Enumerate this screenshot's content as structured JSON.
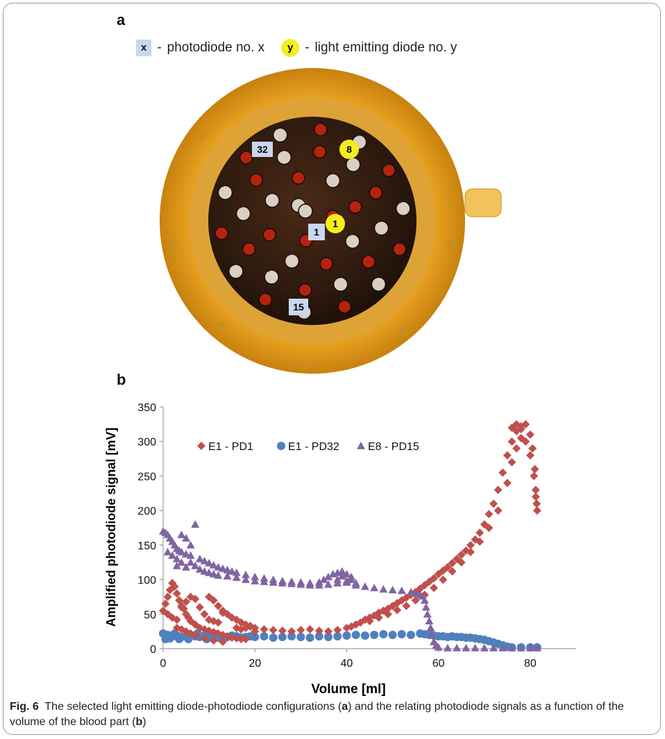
{
  "panel_a": {
    "letter": "a",
    "legend": {
      "pd_symbol": "x",
      "pd_text": "photodiode no. x",
      "led_symbol": "y",
      "led_text": "light emitting diode no. y",
      "dash": "-"
    },
    "markers": [
      {
        "kind": "photodiode",
        "label": "32"
      },
      {
        "kind": "led",
        "label": "8"
      },
      {
        "kind": "photodiode",
        "label": "1"
      },
      {
        "kind": "led",
        "label": "1"
      },
      {
        "kind": "photodiode",
        "label": "15"
      }
    ]
  },
  "panel_b": {
    "letter": "b"
  },
  "caption": {
    "fig_label": "Fig. 6",
    "part1": "The selected light emitting diode-photodiode configurations (",
    "a": "a",
    "part2": ") and the relating photodiode signals as a function of the volume of the blood part (",
    "b": "b",
    "part3": ")"
  },
  "chart_data": {
    "type": "scatter",
    "xlabel": "Volume [ml]",
    "ylabel": "Amplified photodiode signal [mV]",
    "xlim": [
      0,
      90
    ],
    "ylim": [
      0,
      350
    ],
    "xticks": [
      0,
      20,
      40,
      60,
      80
    ],
    "yticks": [
      0,
      50,
      100,
      150,
      200,
      250,
      300,
      350
    ],
    "grid": false,
    "legend_position": "top",
    "series": [
      {
        "name": "E1 - PD1",
        "marker": "diamond",
        "color": "#c0504d",
        "points": [
          [
            0,
            55
          ],
          [
            0.5,
            65
          ],
          [
            1,
            75
          ],
          [
            1.5,
            85
          ],
          [
            2,
            95
          ],
          [
            2.5,
            90
          ],
          [
            3,
            80
          ],
          [
            3.5,
            70
          ],
          [
            4,
            62
          ],
          [
            4.5,
            58
          ],
          [
            5,
            50
          ],
          [
            5.5,
            45
          ],
          [
            6,
            40
          ],
          [
            7,
            35
          ],
          [
            8,
            30
          ],
          [
            9,
            28
          ],
          [
            10,
            26
          ],
          [
            11,
            24
          ],
          [
            12,
            22
          ],
          [
            13,
            20
          ],
          [
            14,
            18
          ],
          [
            15,
            16
          ],
          [
            16,
            15
          ],
          [
            17,
            14
          ],
          [
            18,
            14
          ],
          [
            1,
            50
          ],
          [
            2,
            45
          ],
          [
            3,
            42
          ],
          [
            4,
            60
          ],
          [
            5,
            68
          ],
          [
            6,
            75
          ],
          [
            7,
            72
          ],
          [
            8,
            60
          ],
          [
            9,
            50
          ],
          [
            10,
            42
          ],
          [
            11,
            40
          ],
          [
            12,
            38
          ],
          [
            13,
            55
          ],
          [
            14,
            50
          ],
          [
            15,
            45
          ],
          [
            16,
            42
          ],
          [
            17,
            38
          ],
          [
            18,
            35
          ],
          [
            19,
            32
          ],
          [
            20,
            30
          ],
          [
            3,
            30
          ],
          [
            4,
            28
          ],
          [
            5,
            25
          ],
          [
            6,
            22
          ],
          [
            7,
            20
          ],
          [
            9,
            15
          ],
          [
            11,
            12
          ],
          [
            13,
            10
          ],
          [
            10,
            75
          ],
          [
            11,
            70
          ],
          [
            12,
            62
          ],
          [
            13,
            52
          ],
          [
            16,
            30
          ],
          [
            17,
            28
          ],
          [
            18,
            30
          ],
          [
            19,
            33
          ],
          [
            20,
            25
          ],
          [
            22,
            28
          ],
          [
            24,
            27
          ],
          [
            26,
            26
          ],
          [
            28,
            25
          ],
          [
            30,
            27
          ],
          [
            32,
            28
          ],
          [
            34,
            26
          ],
          [
            36,
            25
          ],
          [
            38,
            27
          ],
          [
            40,
            30
          ],
          [
            41,
            32
          ],
          [
            42,
            35
          ],
          [
            43,
            38
          ],
          [
            44,
            42
          ],
          [
            45,
            45
          ],
          [
            46,
            48
          ],
          [
            47,
            52
          ],
          [
            48,
            55
          ],
          [
            49,
            58
          ],
          [
            50,
            62
          ],
          [
            51,
            66
          ],
          [
            52,
            70
          ],
          [
            53,
            74
          ],
          [
            54,
            78
          ],
          [
            55,
            82
          ],
          [
            56,
            87
          ],
          [
            57,
            92
          ],
          [
            58,
            97
          ],
          [
            59,
            102
          ],
          [
            60,
            108
          ],
          [
            61,
            113
          ],
          [
            62,
            118
          ],
          [
            63,
            124
          ],
          [
            64,
            130
          ],
          [
            65,
            136
          ],
          [
            66,
            142
          ],
          [
            67,
            150
          ],
          [
            68,
            158
          ],
          [
            69,
            168
          ],
          [
            70,
            180
          ],
          [
            71,
            195
          ],
          [
            72,
            210
          ],
          [
            73,
            230
          ],
          [
            74,
            255
          ],
          [
            75,
            280
          ],
          [
            76,
            300
          ],
          [
            77,
            315
          ],
          [
            78,
            322
          ],
          [
            79,
            325
          ],
          [
            80,
            310
          ],
          [
            80.5,
            290
          ],
          [
            81,
            260
          ],
          [
            81.2,
            230
          ],
          [
            81.4,
            210
          ],
          [
            81.5,
            200
          ],
          [
            45,
            40
          ],
          [
            47,
            45
          ],
          [
            49,
            50
          ],
          [
            51,
            56
          ],
          [
            53,
            62
          ],
          [
            55,
            70
          ],
          [
            57,
            78
          ],
          [
            59,
            88
          ],
          [
            61,
            100
          ],
          [
            63,
            112
          ],
          [
            65,
            125
          ],
          [
            67,
            140
          ],
          [
            69,
            155
          ],
          [
            71,
            175
          ],
          [
            73,
            200
          ],
          [
            75,
            240
          ],
          [
            76,
            270
          ],
          [
            77,
            290
          ],
          [
            78,
            305
          ],
          [
            79,
            300
          ],
          [
            80,
            280
          ],
          [
            80.8,
            250
          ],
          [
            81.2,
            220
          ],
          [
            76,
            320
          ],
          [
            77,
            325
          ],
          [
            78,
            318
          ]
        ]
      },
      {
        "name": "E1 - PD32",
        "marker": "circle",
        "color": "#4f81bd",
        "points": [
          [
            0,
            22
          ],
          [
            1,
            20
          ],
          [
            2,
            18
          ],
          [
            3,
            19
          ],
          [
            4,
            17
          ],
          [
            5,
            18
          ],
          [
            6,
            20
          ],
          [
            7,
            18
          ],
          [
            8,
            17
          ],
          [
            9,
            19
          ],
          [
            10,
            18
          ],
          [
            11,
            17
          ],
          [
            12,
            16
          ],
          [
            13,
            18
          ],
          [
            14,
            17
          ],
          [
            15,
            19
          ],
          [
            16,
            18
          ],
          [
            17,
            16
          ],
          [
            18,
            17
          ],
          [
            19,
            18
          ],
          [
            20,
            17
          ],
          [
            22,
            18
          ],
          [
            24,
            16
          ],
          [
            26,
            17
          ],
          [
            28,
            18
          ],
          [
            30,
            17
          ],
          [
            32,
            16
          ],
          [
            34,
            18
          ],
          [
            36,
            17
          ],
          [
            38,
            18
          ],
          [
            40,
            19
          ],
          [
            42,
            20
          ],
          [
            44,
            19
          ],
          [
            46,
            20
          ],
          [
            48,
            21
          ],
          [
            50,
            20
          ],
          [
            52,
            21
          ],
          [
            54,
            20
          ],
          [
            56,
            22
          ],
          [
            57,
            21
          ],
          [
            58,
            20
          ],
          [
            59,
            19
          ],
          [
            60,
            18
          ],
          [
            61,
            18
          ],
          [
            62,
            17
          ],
          [
            63,
            18
          ],
          [
            64,
            17
          ],
          [
            65,
            17
          ],
          [
            66,
            16
          ],
          [
            67,
            16
          ],
          [
            68,
            15
          ],
          [
            69,
            14
          ],
          [
            70,
            13
          ],
          [
            71,
            11
          ],
          [
            72,
            9
          ],
          [
            73,
            7
          ],
          [
            74,
            5
          ],
          [
            75,
            3
          ],
          [
            76,
            2
          ],
          [
            78,
            2
          ],
          [
            80,
            2
          ],
          [
            81.5,
            2
          ],
          [
            0.5,
            14
          ],
          [
            1.5,
            15
          ],
          [
            2.5,
            22
          ],
          [
            3.5,
            14
          ],
          [
            5.5,
            14
          ],
          [
            7.5,
            22
          ],
          [
            9.5,
            14
          ],
          [
            11.5,
            21
          ]
        ]
      },
      {
        "name": "E8 - PD15",
        "marker": "triangle",
        "color": "#8064a2",
        "points": [
          [
            0,
            170
          ],
          [
            0.5,
            168
          ],
          [
            1,
            165
          ],
          [
            1.5,
            160
          ],
          [
            2,
            155
          ],
          [
            2.5,
            150
          ],
          [
            3,
            145
          ],
          [
            3.5,
            142
          ],
          [
            4,
            140
          ],
          [
            5,
            137
          ],
          [
            6,
            135
          ],
          [
            7,
            180
          ],
          [
            8,
            130
          ],
          [
            9,
            127
          ],
          [
            10,
            124
          ],
          [
            11,
            121
          ],
          [
            12,
            118
          ],
          [
            13,
            116
          ],
          [
            14,
            114
          ],
          [
            15,
            112
          ],
          [
            16,
            110
          ],
          [
            18,
            107
          ],
          [
            20,
            104
          ],
          [
            22,
            102
          ],
          [
            24,
            100
          ],
          [
            26,
            98
          ],
          [
            28,
            97
          ],
          [
            30,
            96
          ],
          [
            32,
            95
          ],
          [
            34,
            96
          ],
          [
            35,
            100
          ],
          [
            36,
            104
          ],
          [
            37,
            108
          ],
          [
            38,
            110
          ],
          [
            39,
            112
          ],
          [
            40,
            108
          ],
          [
            41,
            100
          ],
          [
            42,
            92
          ],
          [
            44,
            90
          ],
          [
            46,
            88
          ],
          [
            48,
            86
          ],
          [
            50,
            85
          ],
          [
            52,
            84
          ],
          [
            54,
            82
          ],
          [
            55,
            80
          ],
          [
            56,
            78
          ],
          [
            56.5,
            76
          ],
          [
            57,
            70
          ],
          [
            57.3,
            60
          ],
          [
            57.6,
            50
          ],
          [
            58,
            40
          ],
          [
            58.3,
            30
          ],
          [
            58.6,
            20
          ],
          [
            59,
            10
          ],
          [
            59.5,
            5
          ],
          [
            60,
            2
          ],
          [
            62,
            1
          ],
          [
            64,
            1
          ],
          [
            66,
            1
          ],
          [
            68,
            1
          ],
          [
            70,
            1
          ],
          [
            72,
            1
          ],
          [
            74,
            1
          ],
          [
            76,
            1
          ],
          [
            78,
            1
          ],
          [
            80,
            1
          ],
          [
            81.5,
            1
          ],
          [
            1,
            140
          ],
          [
            2,
            135
          ],
          [
            3,
            130
          ],
          [
            4,
            165
          ],
          [
            5,
            160
          ],
          [
            6,
            150
          ],
          [
            3,
            120
          ],
          [
            4,
            125
          ],
          [
            5,
            118
          ],
          [
            6,
            125
          ],
          [
            7,
            120
          ],
          [
            8,
            115
          ],
          [
            9,
            112
          ],
          [
            10,
            110
          ],
          [
            11,
            108
          ],
          [
            12,
            106
          ],
          [
            14,
            105
          ],
          [
            16,
            103
          ],
          [
            18,
            100
          ],
          [
            20,
            98
          ],
          [
            22,
            97
          ],
          [
            24,
            96
          ],
          [
            26,
            95
          ],
          [
            28,
            94
          ],
          [
            30,
            93
          ],
          [
            32,
            92
          ],
          [
            34,
            92
          ],
          [
            36,
            93
          ],
          [
            38,
            95
          ],
          [
            40,
            96
          ],
          [
            38,
            100
          ],
          [
            39,
            105
          ],
          [
            40,
            98
          ],
          [
            41,
            104
          ],
          [
            42,
            95
          ]
        ]
      }
    ]
  }
}
